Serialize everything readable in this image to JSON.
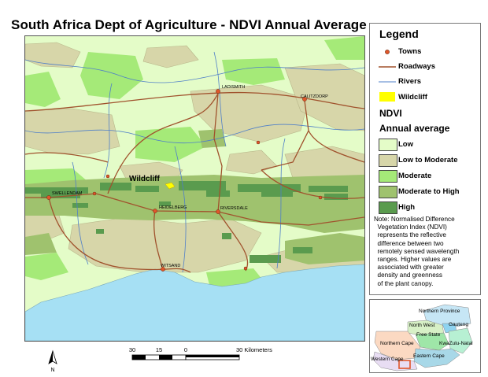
{
  "title": "South Africa Dept of Agriculture - NDVI Annual Average",
  "map": {
    "towns": [
      "LADISMITH",
      "CALITZDORP",
      "SWELLENDAM",
      "HEIDELBERG",
      "RIVERSDALE",
      "WITSAND"
    ],
    "wildcliff_label": "Wildcliff"
  },
  "legend": {
    "title": "Legend",
    "items": [
      {
        "label": "Towns",
        "icon": "town-dot-icon"
      },
      {
        "label": "Roadways",
        "icon": "road-line-icon"
      },
      {
        "label": "Rivers",
        "icon": "river-line-icon"
      },
      {
        "label": "Wildcliff",
        "icon": "wildcliff-swatch-icon"
      }
    ],
    "ndvi_title": "NDVI",
    "ndvi_subtitle": "Annual average",
    "classes": [
      {
        "label": "Low",
        "color": "#e4fcc8"
      },
      {
        "label": "Low to Moderate",
        "color": "#d7d6a9"
      },
      {
        "label": "Moderate",
        "color": "#a5ea78"
      },
      {
        "label": "Moderate to High",
        "color": "#9fc26e"
      },
      {
        "label": "High",
        "color": "#5a9b4e"
      }
    ],
    "note_lines": [
      "Note: Normalised Difference",
      "  Vegetation Index (NDVI)",
      "  represents the reflective",
      "  difference between two",
      "  remotely sensed wavelength",
      "  ranges. Higher values are",
      "  associated with greater",
      "  density and greenness",
      "  of the plant canopy."
    ]
  },
  "inset": {
    "provinces": [
      "Northern Province",
      "Gauteng",
      "North West",
      "Free State",
      "KwaZulu-Natal",
      "Northern Cape",
      "Eastern Cape",
      "Western Cape"
    ]
  },
  "scale": {
    "ticks": [
      "30",
      "15",
      "0",
      "30 Kilometers"
    ]
  },
  "north_label": "N",
  "colors": {
    "ocean": "#a6e0f4",
    "road": "#a0522d",
    "river": "#4f7fc8",
    "town": "#e0562a",
    "wildcliff": "#ffff00"
  }
}
